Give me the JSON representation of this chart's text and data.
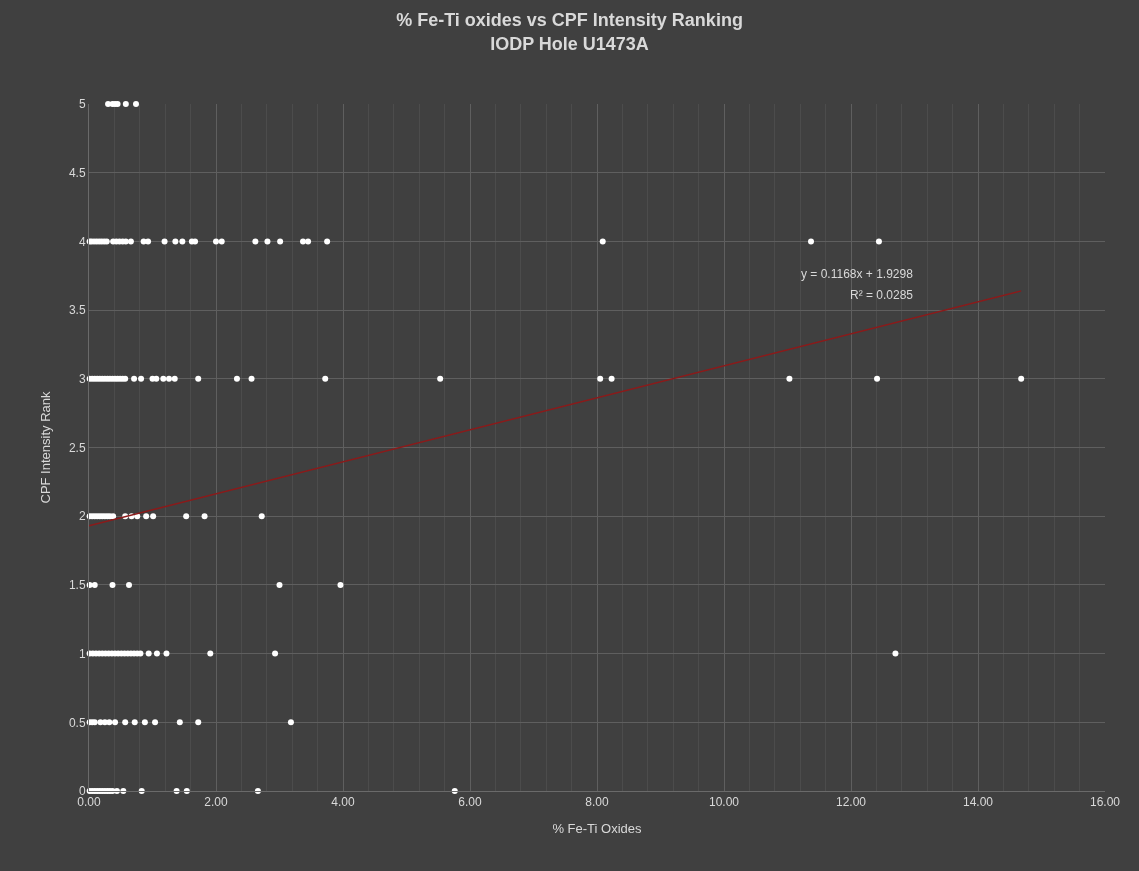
{
  "chart_data": {
    "type": "scatter",
    "title": "% Fe-Ti oxides vs CPF Intensity Ranking\nIODP Hole U1473A",
    "xlabel": "% Fe-Ti Oxides",
    "ylabel": "CPF Intensity Rank",
    "xlim": [
      0,
      16
    ],
    "ylim": [
      0,
      5
    ],
    "xticks": [
      {
        "value": 0,
        "label": "0.00"
      },
      {
        "value": 2,
        "label": "2.00"
      },
      {
        "value": 4,
        "label": "4.00"
      },
      {
        "value": 6,
        "label": "6.00"
      },
      {
        "value": 8,
        "label": "8.00"
      },
      {
        "value": 10,
        "label": "10.00"
      },
      {
        "value": 12,
        "label": "12.00"
      },
      {
        "value": 14,
        "label": "14.00"
      },
      {
        "value": 16,
        "label": "16.00"
      }
    ],
    "yticks": [
      0,
      0.5,
      1,
      1.5,
      2,
      2.5,
      3,
      3.5,
      4,
      4.5,
      5
    ],
    "grid": true,
    "marker": "circle",
    "series": [
      {
        "color": "#ffffff",
        "x": [
          0.3,
          0.37,
          0.41,
          0.45,
          0.58,
          0.74,
          0.01,
          0.04,
          0.08,
          0.12,
          0.16,
          0.2,
          0.24,
          0.28,
          0.38,
          0.43,
          0.48,
          0.53,
          0.58,
          0.66,
          0.86,
          0.93,
          1.19,
          1.36,
          1.47,
          1.62,
          1.67,
          2.0,
          2.09,
          2.62,
          2.81,
          3.01,
          3.37,
          3.45,
          3.75,
          8.09,
          11.37,
          12.44,
          0.01,
          0.05,
          0.09,
          0.13,
          0.17,
          0.21,
          0.25,
          0.29,
          0.33,
          0.37,
          0.41,
          0.45,
          0.49,
          0.53,
          0.57,
          0.71,
          0.82,
          1.0,
          1.06,
          1.17,
          1.26,
          1.35,
          1.72,
          2.33,
          2.56,
          3.72,
          5.53,
          8.05,
          8.23,
          11.03,
          12.41,
          14.68,
          0.01,
          0.05,
          0.09,
          0.13,
          0.17,
          0.21,
          0.25,
          0.29,
          0.33,
          0.38,
          0.57,
          0.67,
          0.76,
          0.9,
          1.01,
          1.53,
          1.82,
          2.72,
          0.01,
          0.09,
          0.37,
          0.63,
          3.0,
          3.96,
          0.01,
          0.06,
          0.11,
          0.16,
          0.21,
          0.26,
          0.31,
          0.36,
          0.41,
          0.46,
          0.51,
          0.56,
          0.61,
          0.66,
          0.71,
          0.76,
          0.81,
          0.94,
          1.07,
          1.22,
          1.91,
          2.93,
          12.7,
          0.01,
          0.05,
          0.09,
          0.18,
          0.25,
          0.32,
          0.41,
          0.57,
          0.72,
          0.88,
          1.04,
          1.43,
          1.72,
          3.18,
          0.01,
          0.05,
          0.09,
          0.13,
          0.17,
          0.21,
          0.25,
          0.29,
          0.33,
          0.37,
          0.44,
          0.54,
          0.83,
          1.38,
          1.54,
          2.66,
          5.76
        ],
        "values": [
          5,
          5,
          5,
          5,
          5,
          5,
          4,
          4,
          4,
          4,
          4,
          4,
          4,
          4,
          4,
          4,
          4,
          4,
          4,
          4,
          4,
          4,
          4,
          4,
          4,
          4,
          4,
          4,
          4,
          4,
          4,
          4,
          4,
          4,
          4,
          4,
          4,
          4,
          3,
          3,
          3,
          3,
          3,
          3,
          3,
          3,
          3,
          3,
          3,
          3,
          3,
          3,
          3,
          3,
          3,
          3,
          3,
          3,
          3,
          3,
          3,
          3,
          3,
          3,
          3,
          3,
          3,
          3,
          3,
          3,
          2,
          2,
          2,
          2,
          2,
          2,
          2,
          2,
          2,
          2,
          2,
          2,
          2,
          2,
          2,
          2,
          2,
          2,
          1.5,
          1.5,
          1.5,
          1.5,
          1.5,
          1.5,
          1,
          1,
          1,
          1,
          1,
          1,
          1,
          1,
          1,
          1,
          1,
          1,
          1,
          1,
          1,
          1,
          1,
          1,
          1,
          1,
          1,
          1,
          1,
          0.5,
          0.5,
          0.5,
          0.5,
          0.5,
          0.5,
          0.5,
          0.5,
          0.5,
          0.5,
          0.5,
          0.5,
          0.5,
          0.5,
          0,
          0,
          0,
          0,
          0,
          0,
          0,
          0,
          0,
          0,
          0,
          0,
          0,
          0,
          0,
          0,
          0
        ]
      },
      {
        "type": "line",
        "color": "#8b1a1a",
        "x": [
          0,
          14.68
        ],
        "values": [
          1.93,
          3.64
        ],
        "marker": "none"
      }
    ],
    "annotations": [
      "y = 0.1168x + 1.9298",
      "R² = 0.0285"
    ]
  }
}
